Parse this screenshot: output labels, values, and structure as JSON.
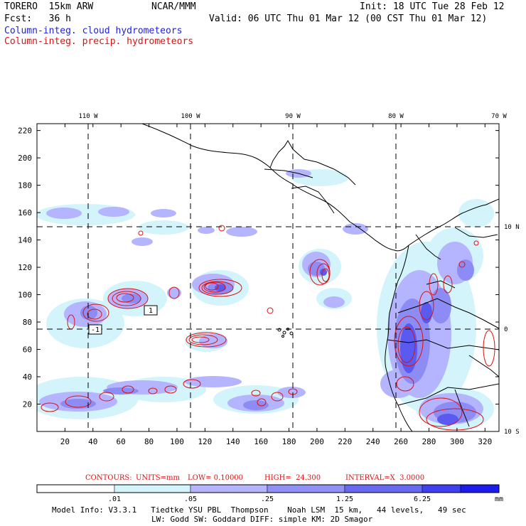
{
  "header": {
    "model": "TORERO  15km ARW",
    "center": "NCAR/MMM",
    "init": "Init: 18 UTC Tue 28 Feb 12",
    "fcst": "Fcst:   36 h",
    "valid": "Valid: 06 UTC Thu 01 Mar 12 (00 CST Thu 01 Mar 12)",
    "field1": "Column-integ. cloud hydrometeors",
    "field2": "Column-integ. precip. hydrometeors"
  },
  "map": {
    "lon_labels": [
      "110 W",
      "100 W",
      "90 W",
      "80 W",
      "70 W"
    ],
    "lat_labels": [
      "10 N",
      "0",
      "10 S"
    ],
    "x_ticks": [
      "20",
      "40",
      "60",
      "80",
      "100",
      "120",
      "140",
      "160",
      "180",
      "200",
      "220",
      "240",
      "260",
      "280",
      "300",
      "320"
    ],
    "y_ticks": [
      "20",
      "40",
      "60",
      "80",
      "100",
      "120",
      "140",
      "160",
      "180",
      "200",
      "220"
    ],
    "x_range": [
      0,
      330
    ],
    "y_range": [
      0,
      225
    ],
    "box_labels": [
      "1",
      "-1"
    ]
  },
  "contour_info": {
    "label": "CONTOURS:",
    "units": "UNITS=mm",
    "low": "LOW= 0.10000",
    "high": "HIGH=  24.300",
    "interval": "INTERVAL=X  3.0000"
  },
  "colorbar": {
    "ticks": [
      ".01",
      ".05",
      ".25",
      "1.25",
      "6.25"
    ],
    "unit": "mm",
    "colors": [
      "#ffffff",
      "#d2f4fa",
      "#b4b4ff",
      "#9090f6",
      "#6868f2",
      "#4040f0",
      "#1c1cf0"
    ]
  },
  "footer": {
    "line1": "Model Info: V3.3.1   Tiedtke YSU PBL  Thompson    Noah LSM  15 km,   44 levels,   49 sec",
    "line2": "LW: Godd SW: Goddard DIFF: simple KM: 2D Smagor"
  },
  "colors": {
    "cloud": "#1f1fd6",
    "precip": "#e01010",
    "coast": "#000000"
  }
}
